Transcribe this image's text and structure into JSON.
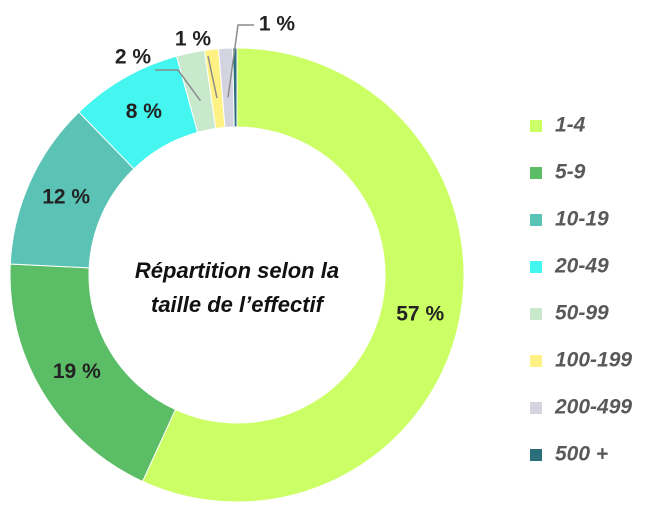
{
  "chart_data": {
    "type": "donut",
    "title": [
      "Répartition selon la",
      "taille de l’effectif"
    ],
    "categories": [
      "1-4",
      "5-9",
      "10-19",
      "20-49",
      "50-99",
      "100-199",
      "200-499",
      "500 +"
    ],
    "values": [
      57,
      19,
      12,
      8,
      2,
      1,
      1,
      0.3
    ],
    "value_labels": [
      "57 %",
      "19 %",
      "12 %",
      "8 %",
      "2 %",
      "1 %",
      "1 %",
      null
    ],
    "colors": [
      "#ccff66",
      "#5cbd67",
      "#5bc2b6",
      "#44f5f0",
      "#c8e9cc",
      "#fff184",
      "#d4d4e0",
      "#2b6f7c"
    ],
    "legend": "right"
  }
}
